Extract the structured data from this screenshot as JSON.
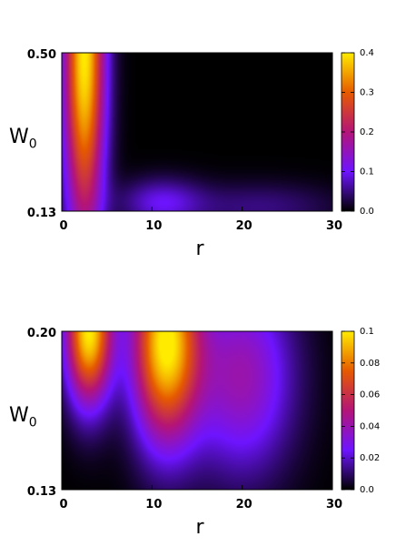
{
  "chart_data": [
    {
      "type": "heatmap",
      "xlabel": "r",
      "ylabel_main": "W",
      "ylabel_sub": "0",
      "xlim": [
        0,
        30
      ],
      "ylim": [
        0.13,
        0.5
      ],
      "x_ticks": [
        "0",
        "10",
        "20",
        "30"
      ],
      "y_ticks": [
        "0.13",
        "0.50"
      ],
      "colorbar": {
        "ticks": [
          "0.0",
          "0.1",
          "0.2",
          "0.3",
          "0.4"
        ],
        "range": [
          0.0,
          0.4
        ]
      },
      "blobs": [
        {
          "x": 2.5,
          "y": 0.5,
          "value": 0.4,
          "sx": 1.6,
          "sy": 0.3
        },
        {
          "x": 11.0,
          "y": 0.15,
          "value": 0.09,
          "sx": 3.2,
          "sy": 0.04
        },
        {
          "x": 22.0,
          "y": 0.14,
          "value": 0.05,
          "sx": 6.0,
          "sy": 0.04
        }
      ]
    },
    {
      "type": "heatmap",
      "xlabel": "r",
      "ylabel_main": "W",
      "ylabel_sub": "0",
      "xlim": [
        0,
        30
      ],
      "ylim": [
        0.13,
        0.2
      ],
      "x_ticks": [
        "0",
        "10",
        "20",
        "30"
      ],
      "y_ticks": [
        "0.13",
        "0.20"
      ],
      "colorbar": {
        "ticks": [
          "0.0",
          "0.02",
          "0.04",
          "0.06",
          "0.08",
          "0.1"
        ],
        "range": [
          0.0,
          0.1
        ]
      },
      "blobs": [
        {
          "x": 3.0,
          "y": 0.2,
          "value": 0.1,
          "sx": 1.8,
          "sy": 0.022
        },
        {
          "x": 11.5,
          "y": 0.195,
          "value": 0.1,
          "sx": 2.6,
          "sy": 0.03
        },
        {
          "x": 20.0,
          "y": 0.18,
          "value": 0.04,
          "sx": 4.0,
          "sy": 0.03
        }
      ]
    }
  ]
}
